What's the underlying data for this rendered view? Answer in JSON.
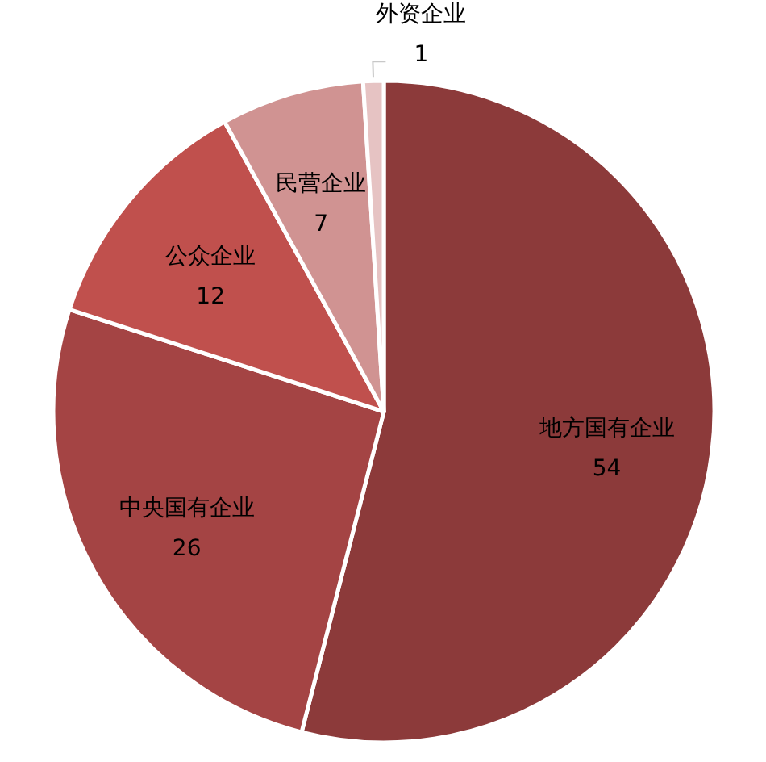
{
  "chart_data": {
    "type": "pie",
    "categories": [
      "地方国有企业",
      "中央国有企业",
      "公众企业",
      "民营企业",
      "外资企业"
    ],
    "values": [
      54,
      26,
      12,
      7,
      1
    ],
    "colors": [
      "#8c3a3a",
      "#a44444",
      "#c0504d",
      "#d09392",
      "#e6c3c3"
    ],
    "data_labels": true
  }
}
